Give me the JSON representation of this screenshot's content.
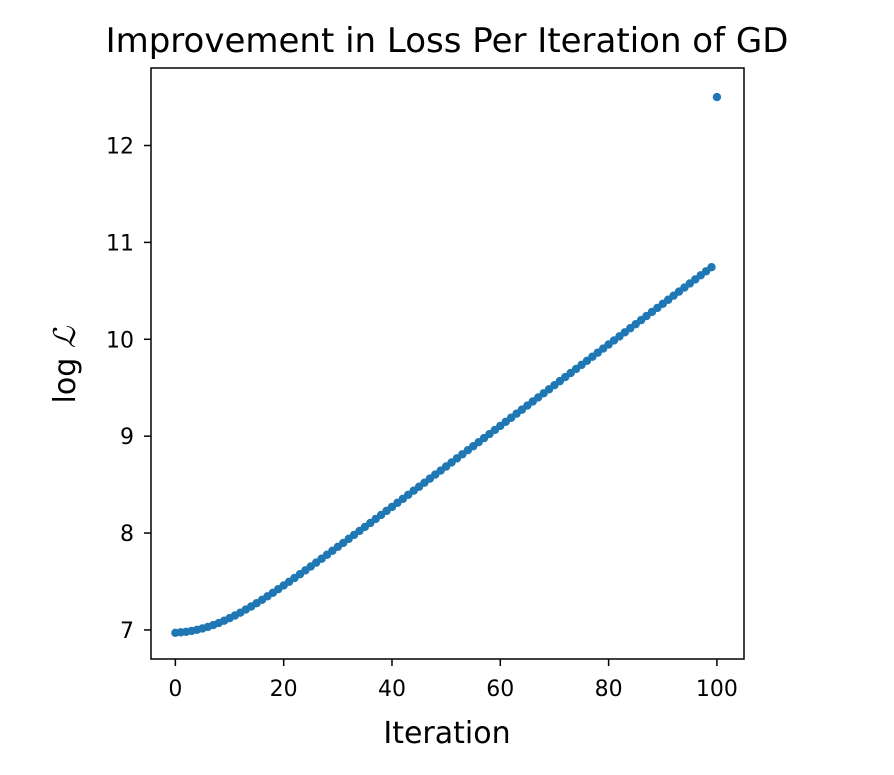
{
  "chart_data": {
    "type": "scatter",
    "title": "Improvement in Loss Per Iteration of GD",
    "xlabel": "Iteration",
    "ylabel": {
      "prefix": "log ",
      "symbol": "ℒ"
    },
    "xlim": [
      -4.5,
      105
    ],
    "ylim": [
      6.7,
      12.8
    ],
    "xticks": [
      0,
      20,
      40,
      60,
      80,
      100
    ],
    "yticks": [
      7,
      8,
      9,
      10,
      11,
      12
    ],
    "grid": false,
    "legend": "none",
    "marker_color": "#1f77b4",
    "x_start": 0,
    "x_end": 100,
    "x_step": 1,
    "y": [
      6.97,
      6.975,
      6.981,
      6.99,
      7.001,
      7.015,
      7.031,
      7.05,
      7.071,
      7.095,
      7.121,
      7.149,
      7.178,
      7.21,
      7.242,
      7.276,
      7.311,
      7.347,
      7.383,
      7.421,
      7.459,
      7.497,
      7.536,
      7.575,
      7.615,
      7.655,
      7.695,
      7.735,
      7.776,
      7.817,
      7.858,
      7.898,
      7.94,
      7.981,
      8.022,
      8.063,
      8.104,
      8.146,
      8.187,
      8.229,
      8.27,
      8.312,
      8.353,
      8.395,
      8.437,
      8.478,
      8.52,
      8.562,
      8.604,
      8.645,
      8.687,
      8.729,
      8.771,
      8.813,
      8.855,
      8.896,
      8.938,
      8.98,
      9.022,
      9.064,
      9.106,
      9.148,
      9.19,
      9.232,
      9.274,
      9.316,
      9.358,
      9.4,
      9.442,
      9.484,
      9.526,
      9.568,
      9.61,
      9.652,
      9.694,
      9.736,
      9.778,
      9.82,
      9.862,
      9.904,
      9.946,
      9.988,
      10.03,
      10.072,
      10.114,
      10.156,
      10.198,
      10.24,
      10.282,
      10.324,
      10.366,
      10.408,
      10.45,
      10.492,
      10.534,
      10.576,
      10.618,
      10.66,
      10.702,
      10.744,
      12.5
    ]
  }
}
